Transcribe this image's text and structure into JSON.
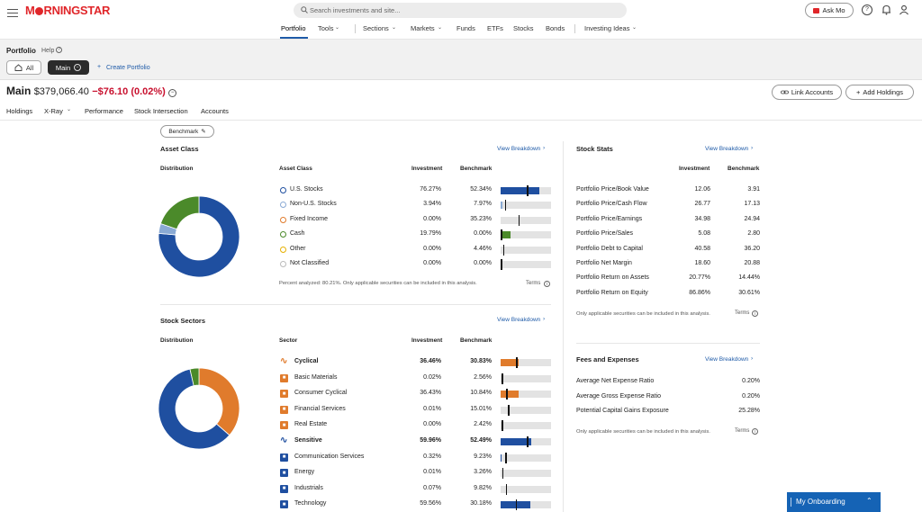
{
  "header": {
    "logo": "M⬤RNINGSTAR",
    "search_placeholder": "Search investments and site...",
    "ask_mo": "Ask Mo",
    "nav": [
      "Portfolio",
      "Tools",
      "Sections",
      "Markets",
      "Funds",
      "ETFs",
      "Stocks",
      "Bonds",
      "Investing Ideas"
    ]
  },
  "portfolio_band": {
    "title": "Portfolio",
    "help": "Help",
    "tab_all": "All",
    "tab_main": "Main",
    "create": "Create Portfolio"
  },
  "summary": {
    "name": "Main",
    "value": "$379,066.40",
    "change": "−$76.10 (0.02%)",
    "link_accounts": "Link Accounts",
    "add_holdings": "Add Holdings"
  },
  "subtabs": [
    "Holdings",
    "X-Ray",
    "Performance",
    "Stock Intersection",
    "Accounts"
  ],
  "benchmark_label": "Benchmark",
  "asset_class": {
    "title": "Asset Class",
    "view": "View Breakdown",
    "distribution": "Distribution",
    "col_name": "Asset Class",
    "col_inv": "Investment",
    "col_bench": "Benchmark",
    "note": "Percent analyzed: 80.21%. Only applicable securities can be included in this analysis.",
    "terms": "Terms",
    "rows": [
      {
        "name": "U.S. Stocks",
        "inv": "76.27%",
        "bench": "52.34%",
        "inv_pct": 76.27,
        "bench_pct": 52.34,
        "color": "#1f4fa0"
      },
      {
        "name": "Non-U.S. Stocks",
        "inv": "3.94%",
        "bench": "7.97%",
        "inv_pct": 3.94,
        "bench_pct": 7.97,
        "color": "#8aaad4"
      },
      {
        "name": "Fixed Income",
        "inv": "0.00%",
        "bench": "35.23%",
        "inv_pct": 0,
        "bench_pct": 35.23,
        "color": "#e07b2c"
      },
      {
        "name": "Cash",
        "inv": "19.79%",
        "bench": "0.00%",
        "inv_pct": 19.79,
        "bench_pct": 0,
        "color": "#4b8a2a"
      },
      {
        "name": "Other",
        "inv": "0.00%",
        "bench": "4.46%",
        "inv_pct": 0,
        "bench_pct": 4.46,
        "color": "#e6b000"
      },
      {
        "name": "Not Classified",
        "inv": "0.00%",
        "bench": "0.00%",
        "inv_pct": 0,
        "bench_pct": 0,
        "color": "#bbbbbb"
      }
    ]
  },
  "stock_sectors": {
    "title": "Stock Sectors",
    "view": "View Breakdown",
    "distribution": "Distribution",
    "col_name": "Sector",
    "col_inv": "Investment",
    "col_bench": "Benchmark",
    "rows": [
      {
        "name": "Cyclical",
        "inv": "36.46%",
        "bench": "30.83%",
        "inv_pct": 36.46,
        "bench_pct": 30.83,
        "color": "#e07b2c",
        "super": true,
        "icon": "cyclical-icon"
      },
      {
        "name": "Basic Materials",
        "inv": "0.02%",
        "bench": "2.56%",
        "inv_pct": 0.02,
        "bench_pct": 2.56,
        "color": "#e07b2c",
        "super": false,
        "icon": "basic-materials-icon"
      },
      {
        "name": "Consumer Cyclical",
        "inv": "36.43%",
        "bench": "10.84%",
        "inv_pct": 36.43,
        "bench_pct": 10.84,
        "color": "#e07b2c",
        "super": false,
        "icon": "consumer-cyclical-icon"
      },
      {
        "name": "Financial Services",
        "inv": "0.01%",
        "bench": "15.01%",
        "inv_pct": 0.01,
        "bench_pct": 15.01,
        "color": "#e07b2c",
        "super": false,
        "icon": "financial-services-icon"
      },
      {
        "name": "Real Estate",
        "inv": "0.00%",
        "bench": "2.42%",
        "inv_pct": 0,
        "bench_pct": 2.42,
        "color": "#e07b2c",
        "super": false,
        "icon": "real-estate-icon"
      },
      {
        "name": "Sensitive",
        "inv": "59.96%",
        "bench": "52.49%",
        "inv_pct": 59.96,
        "bench_pct": 52.49,
        "color": "#1f4fa0",
        "super": true,
        "icon": "sensitive-icon"
      },
      {
        "name": "Communication Services",
        "inv": "0.32%",
        "bench": "9.23%",
        "inv_pct": 0.32,
        "bench_pct": 9.23,
        "color": "#1f4fa0",
        "super": false,
        "icon": "communication-services-icon"
      },
      {
        "name": "Energy",
        "inv": "0.01%",
        "bench": "3.26%",
        "inv_pct": 0.01,
        "bench_pct": 3.26,
        "color": "#1f4fa0",
        "super": false,
        "icon": "energy-icon"
      },
      {
        "name": "Industrials",
        "inv": "0.07%",
        "bench": "9.82%",
        "inv_pct": 0.07,
        "bench_pct": 9.82,
        "color": "#1f4fa0",
        "super": false,
        "icon": "industrials-icon"
      },
      {
        "name": "Technology",
        "inv": "59.56%",
        "bench": "30.18%",
        "inv_pct": 59.56,
        "bench_pct": 30.18,
        "color": "#1f4fa0",
        "super": false,
        "icon": "technology-icon"
      }
    ]
  },
  "stock_stats": {
    "title": "Stock Stats",
    "view": "View Breakdown",
    "col_inv": "Investment",
    "col_bench": "Benchmark",
    "rows": [
      {
        "name": "Portfolio Price/Book Value",
        "inv": "12.06",
        "bench": "3.91"
      },
      {
        "name": "Portfolio Price/Cash Flow",
        "inv": "26.77",
        "bench": "17.13"
      },
      {
        "name": "Portfolio Price/Earnings",
        "inv": "34.98",
        "bench": "24.94"
      },
      {
        "name": "Portfolio Price/Sales",
        "inv": "5.08",
        "bench": "2.80"
      },
      {
        "name": "Portfolio Debt to Capital",
        "inv": "40.58",
        "bench": "36.20"
      },
      {
        "name": "Portfolio Net Margin",
        "inv": "18.60",
        "bench": "20.88"
      },
      {
        "name": "Portfolio Return on Assets",
        "inv": "20.77%",
        "bench": "14.44%"
      },
      {
        "name": "Portfolio Return on Equity",
        "inv": "86.86%",
        "bench": "30.61%"
      }
    ],
    "note": "Only applicable securities can be included in this analysis.",
    "terms": "Terms"
  },
  "fees": {
    "title": "Fees and Expenses",
    "view": "View Breakdown",
    "rows": [
      {
        "name": "Average Net Expense Ratio",
        "value": "0.20%"
      },
      {
        "name": "Average Gross Expense Ratio",
        "value": "0.20%"
      },
      {
        "name": "Potential Capital Gains Exposure",
        "value": "25.28%"
      }
    ],
    "note": "Only applicable securities can be included in this analysis.",
    "terms": "Terms"
  },
  "onboarding": "My Onboarding"
}
